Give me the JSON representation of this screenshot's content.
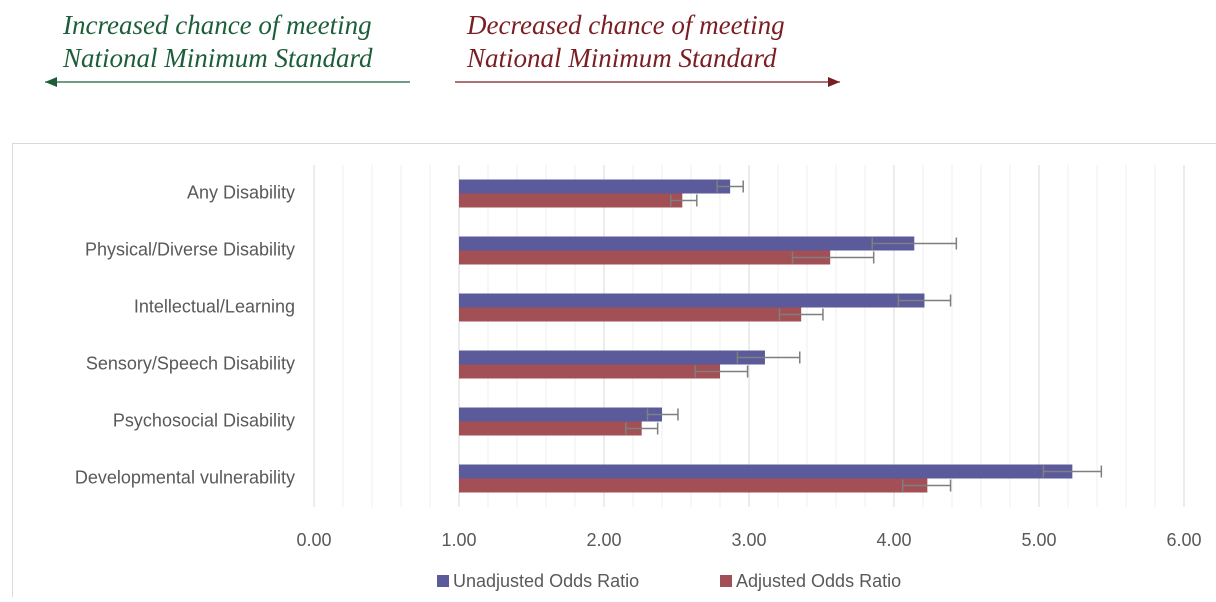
{
  "chart_data": {
    "type": "bar",
    "orientation": "horizontal",
    "annotations": [
      {
        "lines": [
          "Increased chance of meeting",
          "National Minimum Standard"
        ],
        "color": "#1d5e3a",
        "direction": "left"
      },
      {
        "lines": [
          "Decreased chance of meeting",
          "National Minimum Standard"
        ],
        "color": "#7a1e24",
        "direction": "right"
      }
    ],
    "categories": [
      "Any Disability",
      "Physical/Diverse Disability",
      "Intellectual/Learning",
      "Sensory/Speech Disability",
      "Psychosocial Disability",
      "Developmental vulnerability"
    ],
    "baseline": 1,
    "series": [
      {
        "name": "Unadjusted Odds Ratio",
        "color": "#5b5b9b",
        "values": [
          2.87,
          4.14,
          4.21,
          3.11,
          2.4,
          5.23
        ],
        "lower": [
          2.78,
          3.85,
          4.03,
          2.92,
          2.3,
          5.03
        ],
        "upper": [
          2.96,
          4.43,
          4.39,
          3.35,
          2.51,
          5.43
        ]
      },
      {
        "name": "Adjusted Odds Ratio",
        "color": "#a24f56",
        "values": [
          2.54,
          3.56,
          3.36,
          2.8,
          2.26,
          4.23
        ],
        "lower": [
          2.46,
          3.3,
          3.21,
          2.63,
          2.15,
          4.06
        ],
        "upper": [
          2.64,
          3.86,
          3.51,
          2.99,
          2.37,
          4.39
        ]
      }
    ],
    "xlim": [
      0,
      6
    ],
    "xticks": [
      {
        "value": 0,
        "label": "0.00"
      },
      {
        "value": 1,
        "label": "1.00"
      },
      {
        "value": 2,
        "label": "2.00"
      },
      {
        "value": 3,
        "label": "3.00"
      },
      {
        "value": 4,
        "label": "4.00"
      },
      {
        "value": 5,
        "label": "5.00"
      },
      {
        "value": 6,
        "label": "6.00"
      }
    ],
    "xminor": [
      0.2,
      0.4,
      0.6,
      0.8,
      1.2,
      1.4,
      1.6,
      1.8,
      2.2,
      2.4,
      2.6,
      2.8,
      3.2,
      3.4,
      3.6,
      3.8,
      4.2,
      4.4,
      4.6,
      4.8,
      5.2,
      5.4,
      5.6,
      5.8
    ],
    "grid": true,
    "legend": "bottom"
  }
}
